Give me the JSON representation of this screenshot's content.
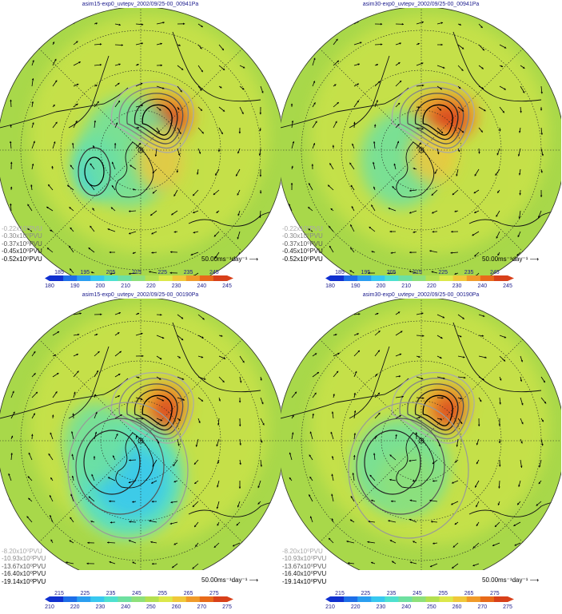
{
  "panels": [
    {
      "title": "asim15-exp0_uvtepv_2002/09/25-00_00941Pa",
      "legend": [
        "-0.22x10⁰PVU",
        "-0.30x10⁰PVU",
        "-0.37x10⁰PVU",
        "-0.45x10⁰PVU",
        "-0.52x10⁰PVU"
      ],
      "ref_vector": "50.00ms⁻¹day⁻¹",
      "colorbar_upper": [
        "185",
        "195",
        "205",
        "215",
        "225",
        "235",
        "245"
      ],
      "colorbar_lower": [
        "180",
        "190",
        "200",
        "210",
        "220",
        "230",
        "240",
        "245"
      ]
    },
    {
      "title": "asim30-exp0_uvtepv_2002/09/25-00_00941Pa",
      "legend": [
        "-0.22x10⁰PVU",
        "-0.30x10⁰PVU",
        "-0.37x10⁰PVU",
        "-0.45x10⁰PVU",
        "-0.52x10⁰PVU"
      ],
      "ref_vector": "50.00ms⁻¹day⁻¹",
      "colorbar_upper": [
        "185",
        "195",
        "205",
        "215",
        "225",
        "235",
        "245"
      ],
      "colorbar_lower": [
        "180",
        "190",
        "200",
        "210",
        "220",
        "230",
        "240",
        "245"
      ]
    },
    {
      "title": "asim15-exp0_uvtepv_2002/09/25-00_00190Pa",
      "legend": [
        "-8.20x10⁰PVU",
        "-10.93x10⁰PVU",
        "-13.67x10⁰PVU",
        "-16.40x10⁰PVU",
        "-19.14x10⁰PVU"
      ],
      "ref_vector": "50.00ms⁻¹day⁻¹",
      "colorbar_upper": [
        "215",
        "225",
        "235",
        "245",
        "255",
        "265",
        "275"
      ],
      "colorbar_lower": [
        "210",
        "220",
        "230",
        "240",
        "250",
        "260",
        "270",
        "275"
      ]
    },
    {
      "title": "asim30-exp0_uvtepv_2002/09/25-00_00190Pa",
      "legend": [
        "-8.20x10⁰PVU",
        "-10.93x10⁰PVU",
        "-13.67x10⁰PVU",
        "-16.40x10⁰PVU",
        "-19.14x10⁰PVU"
      ],
      "ref_vector": "50.00ms⁻¹day⁻¹",
      "colorbar_upper": [
        "215",
        "225",
        "235",
        "245",
        "255",
        "265",
        "275"
      ],
      "colorbar_lower": [
        "210",
        "220",
        "230",
        "240",
        "250",
        "260",
        "270",
        "275"
      ]
    }
  ],
  "colors": {
    "background_field": "#a8d84a",
    "legend_text": [
      "#aaaaaa",
      "#888888",
      "#555555",
      "#222222",
      "#000000"
    ],
    "colorbar": [
      "#1030d0",
      "#1e6ee8",
      "#2a9ef0",
      "#38c8f0",
      "#4ee0d0",
      "#6ee0a0",
      "#8ee07a",
      "#b4e050",
      "#dce84a",
      "#f0c83a",
      "#f09a2a",
      "#e86a1a",
      "#d8401a"
    ]
  }
}
